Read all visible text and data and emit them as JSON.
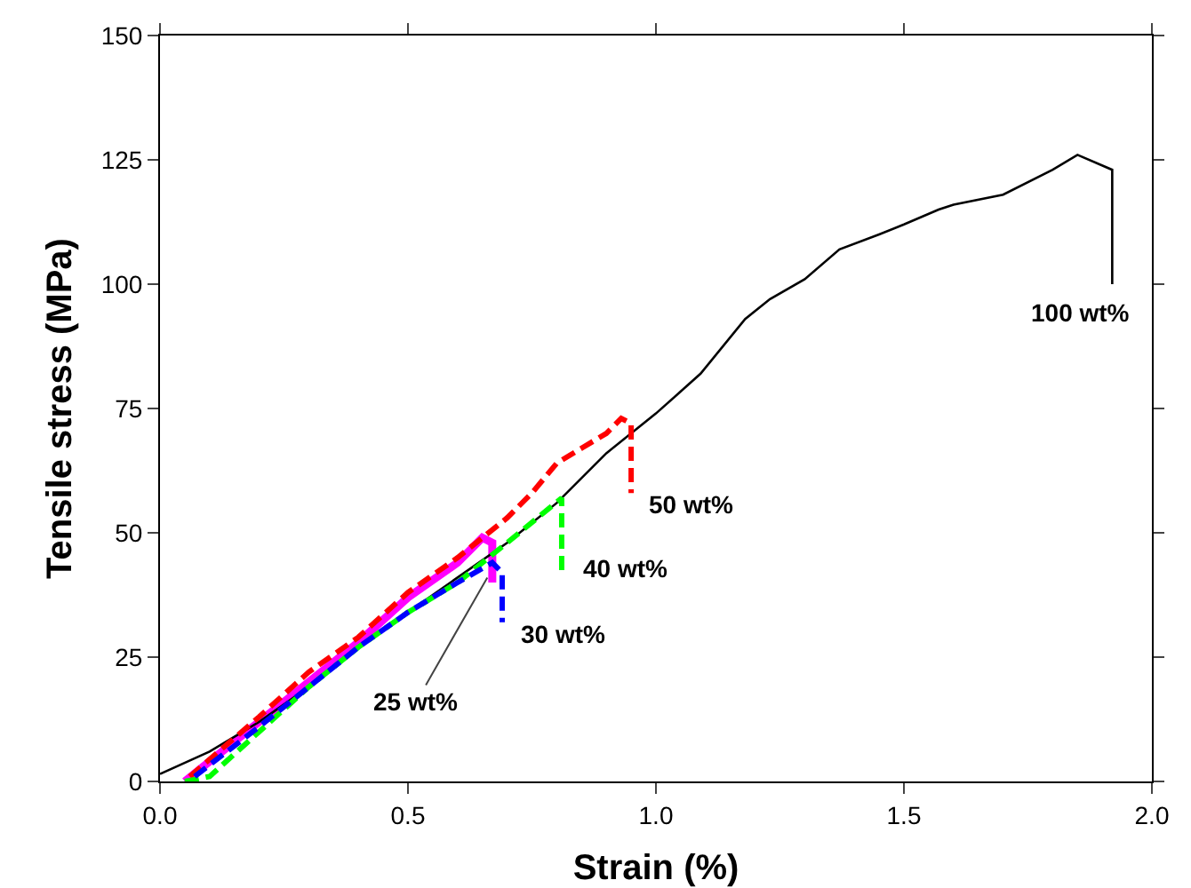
{
  "chart_data": {
    "type": "line",
    "xlabel": "Strain (%)",
    "ylabel": "Tensile stress (MPa)",
    "xlim": [
      0,
      2
    ],
    "ylim": [
      0,
      150
    ],
    "xticks": [
      {
        "value": 0,
        "label": "0.0"
      },
      {
        "value": 0.5,
        "label": "0.5"
      },
      {
        "value": 1,
        "label": "1.0"
      },
      {
        "value": 1.5,
        "label": "1.5"
      },
      {
        "value": 2,
        "label": "2.0"
      }
    ],
    "yticks": [
      0,
      25,
      50,
      75,
      100,
      125,
      150
    ],
    "grid": false,
    "marker": "none",
    "series": [
      {
        "color": "#000000",
        "line_style": "solid",
        "x": [
          0,
          0.1,
          0.2,
          0.3,
          0.4,
          0.5,
          0.6,
          0.7,
          0.8,
          0.9,
          1.0,
          1.09,
          1.18,
          1.23,
          1.3,
          1.37,
          1.45,
          1.5,
          1.57,
          1.6,
          1.7,
          1.8,
          1.85,
          1.92,
          1.92
        ],
        "values": [
          1.5,
          6,
          12,
          19,
          27,
          34,
          41,
          48,
          56,
          66,
          74,
          82,
          93,
          97,
          101,
          107,
          110,
          112,
          115,
          116,
          118,
          123,
          126,
          123,
          100
        ]
      },
      {
        "color": "#ff0000",
        "line_style": "dashed",
        "x": [
          0.06,
          0.2,
          0.3,
          0.4,
          0.5,
          0.6,
          0.65,
          0.7,
          0.75,
          0.8,
          0.85,
          0.9,
          0.93,
          0.95,
          0.95
        ],
        "values": [
          1,
          13,
          22,
          29,
          38,
          45,
          49,
          53,
          58,
          64,
          67,
          70,
          73,
          72,
          58
        ]
      },
      {
        "color": "#00ff00",
        "line_style": "dashed",
        "x": [
          0.05,
          0.1,
          0.2,
          0.3,
          0.4,
          0.5,
          0.6,
          0.7,
          0.81,
          0.81
        ],
        "values": [
          0,
          1,
          10,
          19,
          27,
          34,
          40,
          48,
          57,
          42
        ]
      },
      {
        "color": "#0000ff",
        "line_style": "dashed",
        "x": [
          0.07,
          0.2,
          0.3,
          0.4,
          0.5,
          0.6,
          0.67,
          0.69,
          0.69
        ],
        "values": [
          1,
          11,
          19,
          27,
          34,
          40,
          44,
          42,
          32
        ]
      },
      {
        "color": "#ff00ff",
        "line_style": "solid",
        "x": [
          0.05,
          0.1,
          0.2,
          0.3,
          0.4,
          0.5,
          0.6,
          0.65,
          0.67,
          0.67
        ],
        "values": [
          0,
          4,
          12,
          20,
          28,
          37,
          44,
          49,
          48,
          40
        ]
      }
    ],
    "annotations": [
      {
        "text": "100 wt%",
        "x": 1.92,
        "y": 100
      },
      {
        "text": "50 wt%",
        "x": 0.95,
        "y": 58
      },
      {
        "text": "40 wt%",
        "x": 0.81,
        "y": 42
      },
      {
        "text": "30 wt%",
        "x": 0.69,
        "y": 32
      },
      {
        "text": "25 wt%",
        "x": 0.66,
        "y": 41
      }
    ]
  }
}
